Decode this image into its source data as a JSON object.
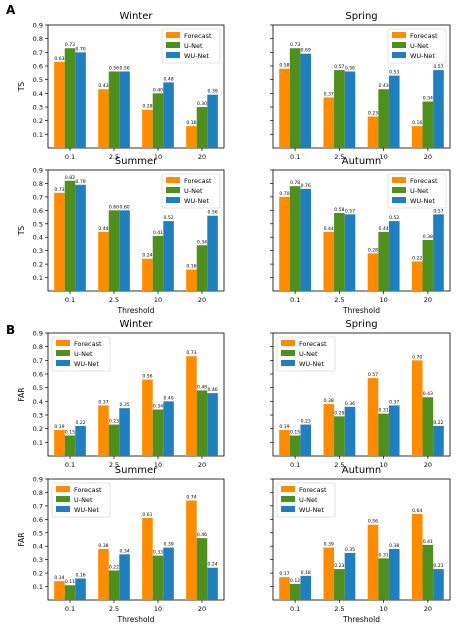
{
  "colors": {
    "forecast": "#ff8c00",
    "unet": "#4e8f1e",
    "wunet": "#1f7fbf"
  },
  "panels": [
    {
      "letter": "A"
    },
    {
      "letter": "B"
    }
  ],
  "chart_data": [
    {
      "type": "bar",
      "panel": "A",
      "title": "Winter",
      "ylabel": "TS",
      "xlabel": "",
      "categories": [
        "0.1",
        "2.5",
        "10",
        "20"
      ],
      "ylim": [
        0,
        0.9
      ],
      "yticks": [
        "0.1",
        "0.2",
        "0.3",
        "0.4",
        "0.5",
        "0.6",
        "0.7",
        "0.8",
        "0.9"
      ],
      "legend": "top-right",
      "series": [
        {
          "name": "Forecast",
          "values": [
            0.63,
            0.43,
            0.28,
            0.16
          ]
        },
        {
          "name": "U-Net",
          "values": [
            0.73,
            0.56,
            0.4,
            0.3
          ]
        },
        {
          "name": "WU-Net",
          "values": [
            0.7,
            0.56,
            0.48,
            0.39
          ]
        }
      ]
    },
    {
      "type": "bar",
      "panel": "A",
      "title": "Spring",
      "ylabel": "",
      "xlabel": "",
      "categories": [
        "0.1",
        "2.5",
        "10",
        "20"
      ],
      "ylim": [
        0,
        0.9
      ],
      "yticks": [],
      "legend": "top-right",
      "series": [
        {
          "name": "Forecast",
          "values": [
            0.58,
            0.37,
            0.23,
            0.16
          ]
        },
        {
          "name": "U-Net",
          "values": [
            0.73,
            0.57,
            0.43,
            0.34
          ]
        },
        {
          "name": "WU-Net",
          "values": [
            0.69,
            0.56,
            0.53,
            0.57
          ]
        }
      ]
    },
    {
      "type": "bar",
      "panel": "A",
      "title": "Summer",
      "ylabel": "TS",
      "xlabel": "Threshold",
      "categories": [
        "0.1",
        "2.5",
        "10",
        "20"
      ],
      "ylim": [
        0,
        0.9
      ],
      "yticks": [
        "0.1",
        "0.2",
        "0.3",
        "0.4",
        "0.5",
        "0.6",
        "0.7",
        "0.8",
        "0.9"
      ],
      "legend": "top-right",
      "series": [
        {
          "name": "Forecast",
          "values": [
            0.73,
            0.44,
            0.24,
            0.16
          ]
        },
        {
          "name": "U-Net",
          "values": [
            0.82,
            0.6,
            0.41,
            0.34
          ]
        },
        {
          "name": "WU-Net",
          "values": [
            0.79,
            0.6,
            0.52,
            0.56
          ]
        }
      ]
    },
    {
      "type": "bar",
      "panel": "A",
      "title": "Autumn",
      "ylabel": "",
      "xlabel": "Threshold",
      "categories": [
        "0.1",
        "2.5",
        "10",
        "20"
      ],
      "ylim": [
        0,
        0.9
      ],
      "yticks": [],
      "legend": "top-right",
      "series": [
        {
          "name": "Forecast",
          "values": [
            0.7,
            0.44,
            0.28,
            0.22
          ]
        },
        {
          "name": "U-Net",
          "values": [
            0.78,
            0.58,
            0.44,
            0.38
          ]
        },
        {
          "name": "WU-Net",
          "values": [
            0.76,
            0.57,
            0.52,
            0.57
          ]
        }
      ]
    },
    {
      "type": "bar",
      "panel": "B",
      "title": "Winter",
      "ylabel": "FAR",
      "xlabel": "",
      "categories": [
        "0.1",
        "2.5",
        "10",
        "20"
      ],
      "ylim": [
        0,
        0.9
      ],
      "yticks": [
        "0.1",
        "0.2",
        "0.3",
        "0.4",
        "0.5",
        "0.6",
        "0.7",
        "0.8",
        "0.9"
      ],
      "legend": "top-left",
      "series": [
        {
          "name": "Forecast",
          "values": [
            0.19,
            0.37,
            0.56,
            0.73
          ]
        },
        {
          "name": "U-Net",
          "values": [
            0.15,
            0.23,
            0.34,
            0.48
          ]
        },
        {
          "name": "WU-Net",
          "values": [
            0.22,
            0.35,
            0.4,
            0.46
          ]
        }
      ]
    },
    {
      "type": "bar",
      "panel": "B",
      "title": "Spring",
      "ylabel": "",
      "xlabel": "",
      "categories": [
        "0.1",
        "2.5",
        "10",
        "20"
      ],
      "ylim": [
        0,
        0.9
      ],
      "yticks": [],
      "legend": "top-left",
      "series": [
        {
          "name": "Forecast",
          "values": [
            0.19,
            0.38,
            0.57,
            0.7
          ]
        },
        {
          "name": "U-Net",
          "values": [
            0.15,
            0.29,
            0.31,
            0.43
          ]
        },
        {
          "name": "WU-Net",
          "values": [
            0.23,
            0.36,
            0.37,
            0.22
          ]
        }
      ]
    },
    {
      "type": "bar",
      "panel": "B",
      "title": "Summer",
      "ylabel": "FAR",
      "xlabel": "Threshold",
      "categories": [
        "0.1",
        "2.5",
        "10",
        "20"
      ],
      "ylim": [
        0,
        0.9
      ],
      "yticks": [
        "0.1",
        "0.2",
        "0.3",
        "0.4",
        "0.5",
        "0.6",
        "0.7",
        "0.8",
        "0.9"
      ],
      "legend": "top-left",
      "series": [
        {
          "name": "Forecast",
          "values": [
            0.14,
            0.38,
            0.61,
            0.74
          ]
        },
        {
          "name": "U-Net",
          "values": [
            0.11,
            0.22,
            0.33,
            0.46
          ]
        },
        {
          "name": "WU-Net",
          "values": [
            0.16,
            0.34,
            0.39,
            0.24
          ]
        }
      ]
    },
    {
      "type": "bar",
      "panel": "B",
      "title": "Autumn",
      "ylabel": "",
      "xlabel": "Threshold",
      "categories": [
        "0.1",
        "2.5",
        "10",
        "20"
      ],
      "ylim": [
        0,
        0.9
      ],
      "yticks": [],
      "legend": "top-left",
      "series": [
        {
          "name": "Forecast",
          "values": [
            0.17,
            0.39,
            0.56,
            0.64
          ]
        },
        {
          "name": "U-Net",
          "values": [
            0.12,
            0.23,
            0.31,
            0.41
          ]
        },
        {
          "name": "WU-Net",
          "values": [
            0.18,
            0.35,
            0.38,
            0.23
          ]
        }
      ]
    }
  ]
}
